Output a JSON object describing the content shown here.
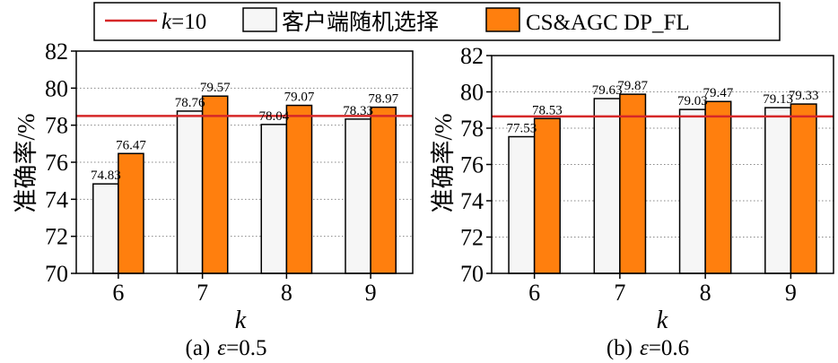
{
  "legend": {
    "items": [
      {
        "name": "baseline",
        "label_italic": "k",
        "label_rest": "=10",
        "color": "#d62728"
      },
      {
        "name": "random",
        "label": "客户端随机选择",
        "color": "#f6f6f6"
      },
      {
        "name": "proposed",
        "label": "CS&AGC DP_FL",
        "color": "#ff7f0e"
      }
    ]
  },
  "colors": {
    "random_fill": "#f6f6f6",
    "proposed_fill": "#ff7f0e",
    "baseline_line": "#d62728",
    "grid": "#888888"
  },
  "chart_data": [
    {
      "type": "bar",
      "caption_prefix": "(a)",
      "caption_symbol": "ε",
      "caption_value": "=0.5",
      "xlabel": "k",
      "ylabel": "准确率/%",
      "categories": [
        "6",
        "7",
        "8",
        "9"
      ],
      "ylim": [
        70,
        82
      ],
      "yticks": [
        70,
        72,
        74,
        76,
        78,
        80,
        82
      ],
      "grid": true,
      "reference_line": 78.5,
      "series": [
        {
          "key": "random",
          "values": [
            74.83,
            78.76,
            78.04,
            78.33
          ],
          "labels": [
            "74.83",
            "78.76",
            "78.04",
            "78.33"
          ]
        },
        {
          "key": "proposed",
          "values": [
            76.47,
            79.57,
            79.07,
            78.97
          ],
          "labels": [
            "76.47",
            "79.57",
            "79.07",
            "78.97"
          ]
        }
      ]
    },
    {
      "type": "bar",
      "caption_prefix": "(b)",
      "caption_symbol": "ε",
      "caption_value": "=0.6",
      "xlabel": "k",
      "ylabel": "准确率/%",
      "categories": [
        "6",
        "7",
        "8",
        "9"
      ],
      "ylim": [
        70,
        82
      ],
      "yticks": [
        70,
        72,
        74,
        76,
        78,
        80,
        82
      ],
      "grid": true,
      "reference_line": 78.65,
      "series": [
        {
          "key": "random",
          "values": [
            77.53,
            79.63,
            79.03,
            79.13
          ],
          "labels": [
            "77.53",
            "79.63",
            "79.03",
            "79.13"
          ]
        },
        {
          "key": "proposed",
          "values": [
            78.53,
            79.87,
            79.47,
            79.33
          ],
          "labels": [
            "78.53",
            "79.87",
            "79.47",
            "79.33"
          ]
        }
      ]
    }
  ]
}
